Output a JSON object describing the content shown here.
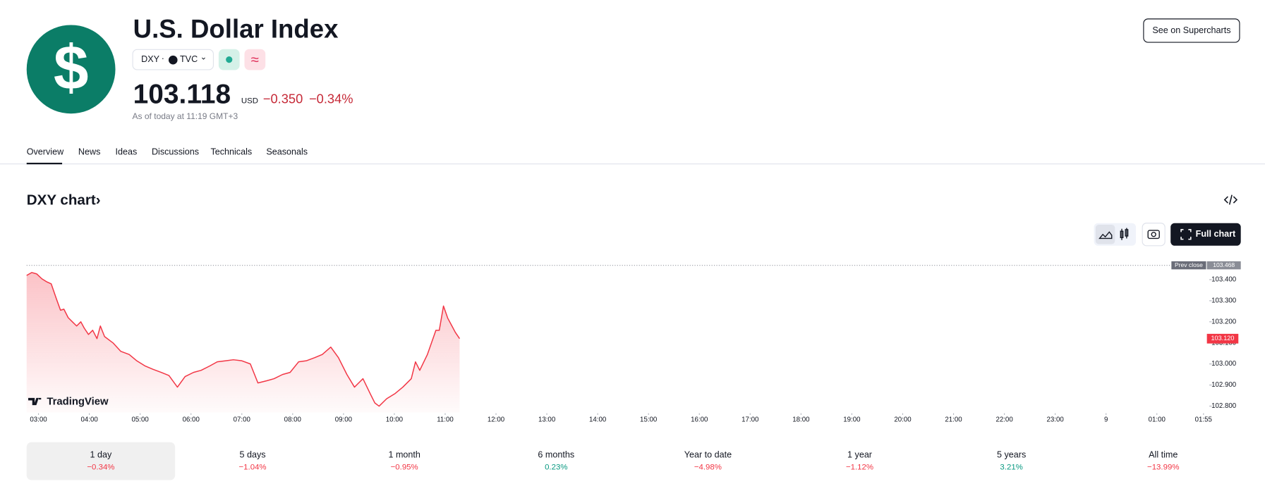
{
  "header": {
    "title": "U.S. Dollar Index",
    "symbol": "DXY",
    "exchange": "TVC",
    "price": "103.118",
    "currency": "USD",
    "change": "−0.350",
    "change_percent": "−0.34%",
    "as_of": "As of today at 11:19 GMT+3",
    "button": "See on Supercharts"
  },
  "tabs": [
    "Overview",
    "News",
    "Ideas",
    "Discussions",
    "Technicals",
    "Seasonals"
  ],
  "chart_section": {
    "title": "DXY chart",
    "full_chart": "Full chart"
  },
  "chart_data": {
    "type": "line",
    "color": "#f23645",
    "watermark": "TradingView",
    "x": [
      "02:46",
      "02:52",
      "02:58",
      "03:04",
      "03:10",
      "03:15",
      "03:21",
      "03:26",
      "03:30",
      "03:35",
      "03:40",
      "03:45",
      "03:50",
      "03:54",
      "03:59",
      "04:04",
      "04:09",
      "04:13",
      "04:18",
      "04:28",
      "04:37",
      "04:47",
      "04:56",
      "05:06",
      "05:15",
      "05:25",
      "05:34",
      "05:44",
      "05:53",
      "06:03",
      "06:12",
      "06:22",
      "06:31",
      "06:41",
      "06:50",
      "07:00",
      "07:10",
      "07:19",
      "07:29",
      "07:38",
      "07:48",
      "07:57",
      "08:07",
      "08:16",
      "08:26",
      "08:35",
      "08:45",
      "08:54",
      "09:04",
      "09:13",
      "09:23",
      "09:32",
      "09:37",
      "09:42",
      "09:51",
      "10:01",
      "10:10",
      "10:20",
      "10:25",
      "10:30",
      "10:39",
      "10:49",
      "10:53",
      "10:58",
      "11:03",
      "11:08",
      "11:12",
      "11:17"
    ],
    "values": [
      103.42,
      103.434,
      103.427,
      103.404,
      103.389,
      103.38,
      103.31,
      103.255,
      103.26,
      103.22,
      103.2,
      103.18,
      103.2,
      103.17,
      103.14,
      103.16,
      103.12,
      103.18,
      103.13,
      103.1,
      103.06,
      103.045,
      103.015,
      102.99,
      102.975,
      102.96,
      102.945,
      102.89,
      102.94,
      102.96,
      102.97,
      102.99,
      103.01,
      103.015,
      103.02,
      103.015,
      103.0,
      102.91,
      102.92,
      102.93,
      102.95,
      102.96,
      103.01,
      103.015,
      103.03,
      103.045,
      103.08,
      103.03,
      102.95,
      102.89,
      102.93,
      102.855,
      102.815,
      102.8,
      102.835,
      102.86,
      102.89,
      102.93,
      103.01,
      102.97,
      103.045,
      103.16,
      103.16,
      103.275,
      103.217,
      103.18,
      103.15,
      103.12
    ],
    "xlim": [
      "02:46",
      "02:00"
    ],
    "xticks": [
      "03:00",
      "04:00",
      "05:00",
      "06:00",
      "07:00",
      "08:00",
      "09:00",
      "10:00",
      "11:00",
      "12:00",
      "13:00",
      "14:00",
      "15:00",
      "16:00",
      "17:00",
      "18:00",
      "19:00",
      "20:00",
      "21:00",
      "22:00",
      "23:00",
      {
        "value": "00:00",
        "label": "9"
      },
      "01:00",
      "01:55"
    ],
    "ylim": [
      102.77,
      103.5
    ],
    "yticks": [
      {
        "value": 102.8,
        "label": "102.800"
      },
      {
        "value": 102.9,
        "label": "102.900"
      },
      {
        "value": 103.0,
        "label": "103.000"
      },
      {
        "value": 103.1,
        "label": "103.100"
      },
      {
        "value": 103.2,
        "label": "103.200"
      },
      {
        "value": 103.3,
        "label": "103.300"
      },
      {
        "value": 103.4,
        "label": "103.400"
      }
    ],
    "prev_close": {
      "label": "Prev close",
      "value": 103.468
    },
    "last_price": {
      "value": 103.12,
      "label": "103.120"
    }
  },
  "periods": [
    {
      "label": "1 day",
      "change": "−0.34%"
    },
    {
      "label": "5 days",
      "change": "−1.04%"
    },
    {
      "label": "1 month",
      "change": "−0.95%"
    },
    {
      "label": "6 months",
      "change": "0.23%"
    },
    {
      "label": "Year to date",
      "change": "−4.98%"
    },
    {
      "label": "1 year",
      "change": "−1.12%"
    },
    {
      "label": "5 years",
      "change": "3.21%"
    },
    {
      "label": "All time",
      "change": "−13.99%"
    }
  ]
}
